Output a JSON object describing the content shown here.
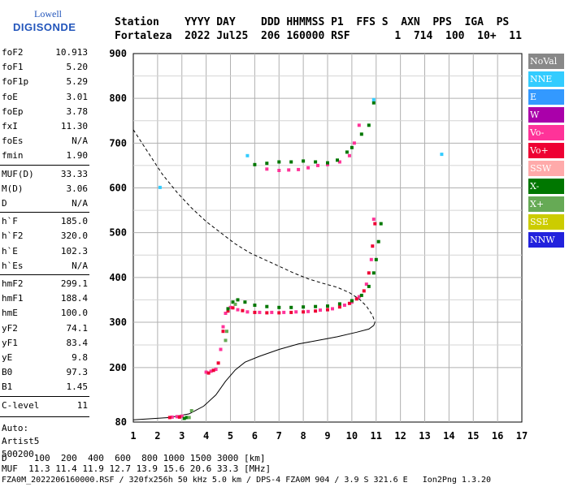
{
  "logo": {
    "top": "Lowell",
    "bottom": "DIGISONDE"
  },
  "header": {
    "line1": "Station    YYYY DAY    DDD HHMMSS P1  FFS S  AXN  PPS  IGA  PS",
    "line2": "Fortaleza  2022 Jul25  206 160000 RSF       1  714  100  10+  11"
  },
  "params": [
    {
      "label": "foF2",
      "value": "10.913"
    },
    {
      "label": "foF1",
      "value": "5.20"
    },
    {
      "label": "foF1p",
      "value": "5.29"
    },
    {
      "label": "foE",
      "value": "3.01"
    },
    {
      "label": "foEp",
      "value": "3.78"
    },
    {
      "label": "fxI",
      "value": "11.30"
    },
    {
      "label": "foEs",
      "value": "N/A"
    },
    {
      "label": "fmin",
      "value": "1.90"
    },
    {
      "label": "MUF(D)",
      "value": "33.33"
    },
    {
      "label": "M(D)",
      "value": "3.06"
    },
    {
      "label": "D",
      "value": "N/A"
    },
    {
      "label": "h`F",
      "value": "185.0"
    },
    {
      "label": "h`F2",
      "value": "320.0"
    },
    {
      "label": "h`E",
      "value": "102.3"
    },
    {
      "label": "h`Es",
      "value": "N/A"
    },
    {
      "label": "hmF2",
      "value": "299.1"
    },
    {
      "label": "hmF1",
      "value": "188.4"
    },
    {
      "label": "hmE",
      "value": "100.0"
    },
    {
      "label": "yF2",
      "value": "74.1"
    },
    {
      "label": "yF1",
      "value": "83.4"
    },
    {
      "label": "yE",
      "value": "9.8"
    },
    {
      "label": "B0",
      "value": "97.3"
    },
    {
      "label": "B1",
      "value": "1.45"
    },
    {
      "label": "C-level",
      "value": "11"
    }
  ],
  "auto": {
    "line1": "Auto:",
    "line2": "Artist5",
    "line3": "500200"
  },
  "legend": [
    {
      "label": "NoVal",
      "color": "#888888",
      "text": "#ffffff"
    },
    {
      "label": "NNE",
      "color": "#33ccff",
      "text": "#ffffff"
    },
    {
      "label": "E",
      "color": "#3399ff",
      "text": "#ffffff"
    },
    {
      "label": "W",
      "color": "#aa00aa",
      "text": "#ffffff"
    },
    {
      "label": "Vo-",
      "color": "#ff3399",
      "text": "#ffffff"
    },
    {
      "label": "Vo+",
      "color": "#ee0033",
      "text": "#ffffff"
    },
    {
      "label": "SSW",
      "color": "#ffaaaa",
      "text": "#ffffff"
    },
    {
      "label": "X-",
      "color": "#007700",
      "text": "#ffffff"
    },
    {
      "label": "X+",
      "color": "#66aa55",
      "text": "#ffffff"
    },
    {
      "label": "SSE",
      "color": "#cccc00",
      "text": "#ffffff"
    },
    {
      "label": "NNW",
      "color": "#2222dd",
      "text": "#ffffff"
    }
  ],
  "bottom": {
    "line1": "D     100  200  400  600  800 1000 1500 3000 [km]",
    "line2": "MUF  11.3 11.4 11.9 12.7 13.9 15.6 20.6 33.3 [MHz]",
    "line3": "FZA0M_2022206160000.RSF / 320fx256h 50 kHz 5.0 km / DPS-4 FZA0M 904 / 3.9 S 321.6 E   Ion2Png 1.3.20"
  },
  "chart_data": {
    "type": "scatter",
    "xlim": [
      1,
      17
    ],
    "ylim": [
      80,
      900
    ],
    "xticks": [
      1,
      2,
      3,
      4,
      5,
      6,
      7,
      8,
      9,
      10,
      11,
      12,
      13,
      14,
      15,
      16,
      17
    ],
    "yticks": [
      80,
      200,
      300,
      400,
      500,
      600,
      700,
      800,
      900
    ],
    "grid": true,
    "series": [
      {
        "name": "Vo-",
        "color": "#ff3399",
        "points": [
          [
            2.6,
            91
          ],
          [
            2.8,
            92
          ],
          [
            3.0,
            93
          ],
          [
            4.0,
            190
          ],
          [
            4.2,
            192
          ],
          [
            4.4,
            196
          ],
          [
            4.6,
            240
          ],
          [
            4.7,
            290
          ],
          [
            4.8,
            320
          ],
          [
            4.9,
            330
          ],
          [
            5.0,
            333
          ],
          [
            5.3,
            328
          ],
          [
            5.7,
            323
          ],
          [
            6.2,
            322
          ],
          [
            6.7,
            322
          ],
          [
            7.2,
            322
          ],
          [
            7.7,
            323
          ],
          [
            8.2,
            324
          ],
          [
            8.7,
            327
          ],
          [
            9.2,
            330
          ],
          [
            9.7,
            338
          ],
          [
            10.0,
            345
          ],
          [
            10.3,
            357
          ],
          [
            10.6,
            385
          ],
          [
            10.8,
            440
          ],
          [
            10.9,
            530
          ],
          [
            6.5,
            642
          ],
          [
            7.0,
            639
          ],
          [
            7.4,
            640
          ],
          [
            7.8,
            641
          ],
          [
            8.2,
            645
          ],
          [
            8.6,
            650
          ],
          [
            9.0,
            652
          ],
          [
            9.5,
            658
          ],
          [
            9.9,
            672
          ],
          [
            10.1,
            700
          ],
          [
            10.3,
            740
          ]
        ]
      },
      {
        "name": "Vo+",
        "color": "#ee0033",
        "points": [
          [
            2.5,
            90
          ],
          [
            2.9,
            91
          ],
          [
            4.1,
            188
          ],
          [
            4.3,
            194
          ],
          [
            4.5,
            210
          ],
          [
            4.7,
            280
          ],
          [
            4.9,
            325
          ],
          [
            5.1,
            332
          ],
          [
            5.5,
            326
          ],
          [
            6.0,
            322
          ],
          [
            6.5,
            321
          ],
          [
            7.0,
            321
          ],
          [
            7.5,
            322
          ],
          [
            8.0,
            323
          ],
          [
            8.5,
            325
          ],
          [
            9.0,
            328
          ],
          [
            9.5,
            334
          ],
          [
            9.9,
            342
          ],
          [
            10.2,
            352
          ],
          [
            10.5,
            370
          ],
          [
            10.7,
            410
          ],
          [
            10.85,
            470
          ],
          [
            10.95,
            520
          ]
        ]
      },
      {
        "name": "X-",
        "color": "#007700",
        "points": [
          [
            3.1,
            88
          ],
          [
            3.2,
            90
          ],
          [
            4.9,
            330
          ],
          [
            5.1,
            345
          ],
          [
            5.3,
            350
          ],
          [
            5.6,
            345
          ],
          [
            6.0,
            338
          ],
          [
            6.5,
            335
          ],
          [
            7.0,
            333
          ],
          [
            7.5,
            333
          ],
          [
            8.0,
            334
          ],
          [
            8.5,
            335
          ],
          [
            9.0,
            336
          ],
          [
            9.5,
            341
          ],
          [
            10.0,
            348
          ],
          [
            10.4,
            360
          ],
          [
            10.7,
            380
          ],
          [
            10.9,
            410
          ],
          [
            11.0,
            440
          ],
          [
            11.1,
            480
          ],
          [
            11.2,
            520
          ],
          [
            6.0,
            652
          ],
          [
            6.5,
            655
          ],
          [
            7.0,
            658
          ],
          [
            7.5,
            658
          ],
          [
            8.0,
            660
          ],
          [
            8.5,
            658
          ],
          [
            9.0,
            656
          ],
          [
            9.4,
            662
          ],
          [
            9.8,
            680
          ],
          [
            10.0,
            690
          ],
          [
            10.4,
            720
          ],
          [
            10.7,
            740
          ],
          [
            10.9,
            790
          ]
        ]
      },
      {
        "name": "X+",
        "color": "#66aa55",
        "points": [
          [
            3.3,
            90
          ],
          [
            3.4,
            105
          ],
          [
            4.8,
            260
          ],
          [
            4.85,
            280
          ],
          [
            5.2,
            340
          ]
        ]
      },
      {
        "name": "NNE",
        "color": "#33ccff",
        "points": [
          [
            2.1,
            601
          ],
          [
            5.7,
            672
          ],
          [
            13.7,
            675
          ],
          [
            10.9,
            797
          ]
        ]
      }
    ],
    "lines": [
      {
        "name": "profile",
        "style": "solid",
        "points": [
          [
            1,
            85
          ],
          [
            2.5,
            90
          ],
          [
            3.3,
            98
          ],
          [
            3.9,
            115
          ],
          [
            4.4,
            140
          ],
          [
            4.8,
            170
          ],
          [
            5.2,
            195
          ],
          [
            5.6,
            212
          ],
          [
            6.2,
            225
          ],
          [
            7.0,
            240
          ],
          [
            7.8,
            252
          ],
          [
            8.6,
            260
          ],
          [
            9.4,
            268
          ],
          [
            10.2,
            278
          ],
          [
            10.7,
            285
          ],
          [
            10.9,
            293
          ],
          [
            10.95,
            300
          ]
        ]
      },
      {
        "name": "model",
        "style": "dashed",
        "points": [
          [
            1,
            730
          ],
          [
            1.6,
            680
          ],
          [
            2.2,
            630
          ],
          [
            2.8,
            590
          ],
          [
            3.4,
            555
          ],
          [
            4.0,
            525
          ],
          [
            4.6,
            500
          ],
          [
            5.2,
            475
          ],
          [
            5.8,
            455
          ],
          [
            6.4,
            440
          ],
          [
            7.0,
            425
          ],
          [
            7.6,
            410
          ],
          [
            8.2,
            397
          ],
          [
            8.8,
            387
          ],
          [
            9.4,
            378
          ],
          [
            9.9,
            366
          ],
          [
            10.3,
            352
          ],
          [
            10.6,
            336
          ],
          [
            10.85,
            315
          ],
          [
            10.95,
            300
          ]
        ]
      }
    ]
  }
}
